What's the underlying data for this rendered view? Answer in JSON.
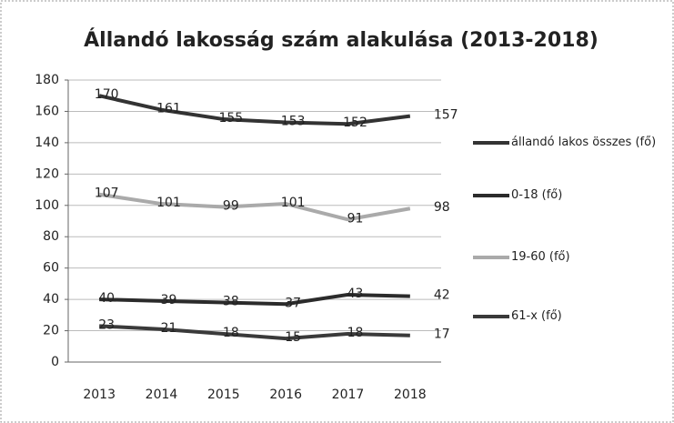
{
  "chart_data": {
    "type": "line",
    "title": "Állandó lakosság szám alakulása (2013-2018)",
    "categories": [
      "2013",
      "2014",
      "2015",
      "2016",
      "2017",
      "2018"
    ],
    "series": [
      {
        "name": "állandó lakos összes (fő)",
        "color": "#333333",
        "values": [
          170,
          161,
          155,
          153,
          152,
          157
        ]
      },
      {
        "name": "0-18 (fő)",
        "color": "#2b2b2b",
        "values": [
          40,
          39,
          38,
          37,
          43,
          42
        ]
      },
      {
        "name": "19-60 (fő)",
        "color": "#aaaaaa",
        "values": [
          107,
          101,
          99,
          101,
          91,
          98
        ]
      },
      {
        "name": "61-x (fő)",
        "color": "#3a3a3a",
        "values": [
          23,
          21,
          18,
          15,
          18,
          17
        ]
      }
    ],
    "ylim": [
      0,
      180
    ],
    "yticks": [
      0,
      20,
      40,
      60,
      80,
      100,
      120,
      140,
      160,
      180
    ],
    "grid": true,
    "legend": "right"
  }
}
